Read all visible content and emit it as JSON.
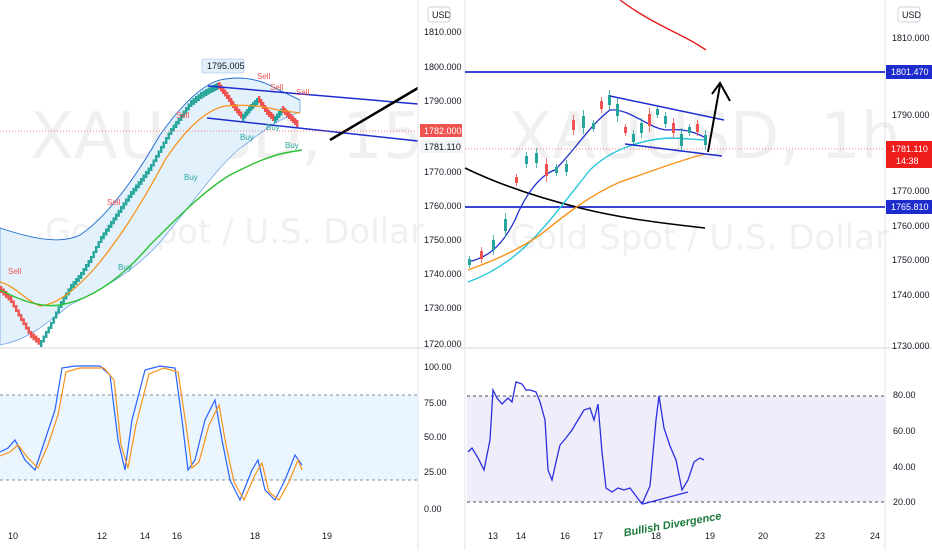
{
  "left_chart": {
    "watermark_symbol": "XAUUSD, 15",
    "watermark_name": "Gold Spot / U.S. Dollar",
    "price_axis": [
      "1810.000",
      "1800.000",
      "1790.000",
      "1770.000",
      "1760.000",
      "1750.000",
      "1740.000",
      "1730.000",
      "1720.000"
    ],
    "time_axis": [
      "10",
      "12",
      "14",
      "16",
      "18",
      "19"
    ],
    "peak_label": "1795.005",
    "price_tags": [
      {
        "text": "1782.000",
        "color": "#ef5350"
      },
      {
        "text": "1781.110",
        "color": "#f1f3f6"
      }
    ],
    "currency": "USD",
    "signals": {
      "sell": "Sell",
      "buy": "Buy"
    },
    "osc_axis": [
      "100.00",
      "75.00",
      "50.00",
      "25.00",
      "0.00"
    ]
  },
  "right_chart": {
    "watermark_symbol": "XAUUSD, 1h",
    "watermark_name": "Gold Spot / U.S. Dollar",
    "currency": "USD",
    "price_axis": [
      "1810.000",
      "1790.000",
      "1770.000",
      "1760.000",
      "1750.000",
      "1740.000",
      "1730.000"
    ],
    "time_axis": [
      "13",
      "14",
      "16",
      "17",
      "18",
      "19",
      "20",
      "23",
      "24"
    ],
    "tags": {
      "upper": "1801.470",
      "current": "1781.110",
      "countdown": "14:38",
      "lower": "1765.810"
    },
    "osc_axis": [
      "80.00",
      "60.00",
      "40.00",
      "20.00"
    ],
    "annotation": "Bullish Divergence"
  },
  "colors": {
    "blue_line": "#1e2ccd",
    "sell": "#ef5350",
    "buy": "#26a69a",
    "orange": "#f7931a",
    "green": "#27c22f",
    "cyan": "#26c6da",
    "band": "#e3f1fc",
    "osc_fill": "#f0edfb"
  }
}
